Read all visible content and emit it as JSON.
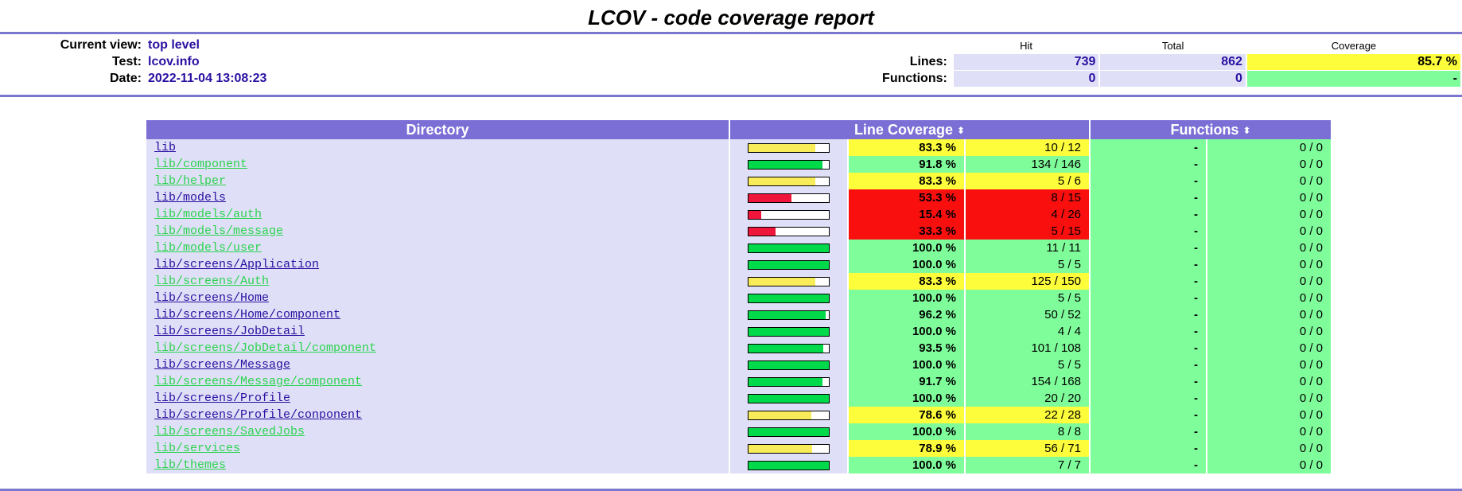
{
  "title": "LCOV - code coverage report",
  "info": {
    "current_view_label": "Current view:",
    "current_view_value": "top level",
    "test_label": "Test:",
    "test_value": "lcov.info",
    "date_label": "Date:",
    "date_value": "2022-11-04 13:08:23"
  },
  "summary": {
    "col_hit": "Hit",
    "col_total": "Total",
    "col_coverage": "Coverage",
    "lines_label": "Lines:",
    "lines_hit": "739",
    "lines_total": "862",
    "lines_coverage": "85.7 %",
    "functions_label": "Functions:",
    "functions_hit": "0",
    "functions_total": "0",
    "functions_coverage": "-"
  },
  "table": {
    "col_directory": "Directory",
    "col_line_coverage": "Line Coverage",
    "col_functions": "Functions",
    "sort_glyph": "⬍",
    "rows": [
      {
        "dir": "lib",
        "visited": true,
        "fraction": 0.833,
        "pct": "83.3 %",
        "lines": "10 / 12",
        "level": "med",
        "func_pct": "-",
        "funcs": "0 / 0"
      },
      {
        "dir": "lib/component",
        "visited": false,
        "fraction": 0.918,
        "pct": "91.8 %",
        "lines": "134 / 146",
        "level": "hi",
        "func_pct": "-",
        "funcs": "0 / 0"
      },
      {
        "dir": "lib/helper",
        "visited": false,
        "fraction": 0.833,
        "pct": "83.3 %",
        "lines": "5 / 6",
        "level": "med",
        "func_pct": "-",
        "funcs": "0 / 0"
      },
      {
        "dir": "lib/models",
        "visited": true,
        "fraction": 0.533,
        "pct": "53.3 %",
        "lines": "8 / 15",
        "level": "lo",
        "func_pct": "-",
        "funcs": "0 / 0"
      },
      {
        "dir": "lib/models/auth",
        "visited": false,
        "fraction": 0.154,
        "pct": "15.4 %",
        "lines": "4 / 26",
        "level": "lo",
        "func_pct": "-",
        "funcs": "0 / 0"
      },
      {
        "dir": "lib/models/message",
        "visited": false,
        "fraction": 0.333,
        "pct": "33.3 %",
        "lines": "5 / 15",
        "level": "lo",
        "func_pct": "-",
        "funcs": "0 / 0"
      },
      {
        "dir": "lib/models/user",
        "visited": false,
        "fraction": 1.0,
        "pct": "100.0 %",
        "lines": "11 / 11",
        "level": "hi",
        "func_pct": "-",
        "funcs": "0 / 0"
      },
      {
        "dir": "lib/screens/Application",
        "visited": true,
        "fraction": 1.0,
        "pct": "100.0 %",
        "lines": "5 / 5",
        "level": "hi",
        "func_pct": "-",
        "funcs": "0 / 0"
      },
      {
        "dir": "lib/screens/Auth",
        "visited": false,
        "fraction": 0.833,
        "pct": "83.3 %",
        "lines": "125 / 150",
        "level": "med",
        "func_pct": "-",
        "funcs": "0 / 0"
      },
      {
        "dir": "lib/screens/Home",
        "visited": true,
        "fraction": 1.0,
        "pct": "100.0 %",
        "lines": "5 / 5",
        "level": "hi",
        "func_pct": "-",
        "funcs": "0 / 0"
      },
      {
        "dir": "lib/screens/Home/component",
        "visited": true,
        "fraction": 0.962,
        "pct": "96.2 %",
        "lines": "50 / 52",
        "level": "hi",
        "func_pct": "-",
        "funcs": "0 / 0"
      },
      {
        "dir": "lib/screens/JobDetail",
        "visited": true,
        "fraction": 1.0,
        "pct": "100.0 %",
        "lines": "4 / 4",
        "level": "hi",
        "func_pct": "-",
        "funcs": "0 / 0"
      },
      {
        "dir": "lib/screens/JobDetail/component",
        "visited": false,
        "fraction": 0.935,
        "pct": "93.5 %",
        "lines": "101 / 108",
        "level": "hi",
        "func_pct": "-",
        "funcs": "0 / 0"
      },
      {
        "dir": "lib/screens/Message",
        "visited": true,
        "fraction": 1.0,
        "pct": "100.0 %",
        "lines": "5 / 5",
        "level": "hi",
        "func_pct": "-",
        "funcs": "0 / 0"
      },
      {
        "dir": "lib/screens/Message/component",
        "visited": false,
        "fraction": 0.917,
        "pct": "91.7 %",
        "lines": "154 / 168",
        "level": "hi",
        "func_pct": "-",
        "funcs": "0 / 0"
      },
      {
        "dir": "lib/screens/Profile",
        "visited": true,
        "fraction": 1.0,
        "pct": "100.0 %",
        "lines": "20 / 20",
        "level": "hi",
        "func_pct": "-",
        "funcs": "0 / 0"
      },
      {
        "dir": "lib/screens/Profile/conponent",
        "visited": true,
        "fraction": 0.786,
        "pct": "78.6 %",
        "lines": "22 / 28",
        "level": "med",
        "func_pct": "-",
        "funcs": "0 / 0"
      },
      {
        "dir": "lib/screens/SavedJobs",
        "visited": false,
        "fraction": 1.0,
        "pct": "100.0 %",
        "lines": "8 / 8",
        "level": "hi",
        "func_pct": "-",
        "funcs": "0 / 0"
      },
      {
        "dir": "lib/services",
        "visited": false,
        "fraction": 0.789,
        "pct": "78.9 %",
        "lines": "56 / 71",
        "level": "med",
        "func_pct": "-",
        "funcs": "0 / 0"
      },
      {
        "dir": "lib/themes",
        "visited": false,
        "fraction": 1.0,
        "pct": "100.0 %",
        "lines": "7 / 7",
        "level": "hi",
        "func_pct": "-",
        "funcs": "0 / 0"
      }
    ]
  },
  "colors": {
    "ruler": "#7b77cf",
    "header_bg": "#7b6fd6",
    "row_bg": "#dfe0f7",
    "hi": "#7ffd9b",
    "med": "#fdfd3b",
    "lo": "#fa0f0f",
    "bar_hi": "#00d949",
    "bar_med": "#f8ec5a",
    "bar_lo": "#f0153b"
  }
}
